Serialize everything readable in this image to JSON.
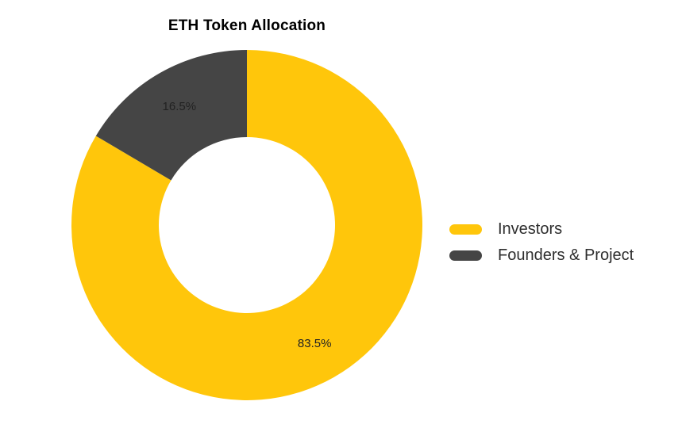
{
  "title": "ETH Token Allocation",
  "chart_data": {
    "type": "pie",
    "subtype": "donut",
    "title": "ETH Token Allocation",
    "labels": [
      "Investors",
      "Founders & Project"
    ],
    "values": [
      83.5,
      16.5
    ],
    "percent_labels": [
      "83.5%",
      "16.5%"
    ],
    "colors": [
      "#FFC60B",
      "#454545"
    ],
    "hole_ratio": 0.5,
    "start_angle_deg": -90,
    "direction": "clockwise",
    "legend_position": "right",
    "background_color": "#FFFFFF",
    "slice_label_color": "#222222"
  }
}
